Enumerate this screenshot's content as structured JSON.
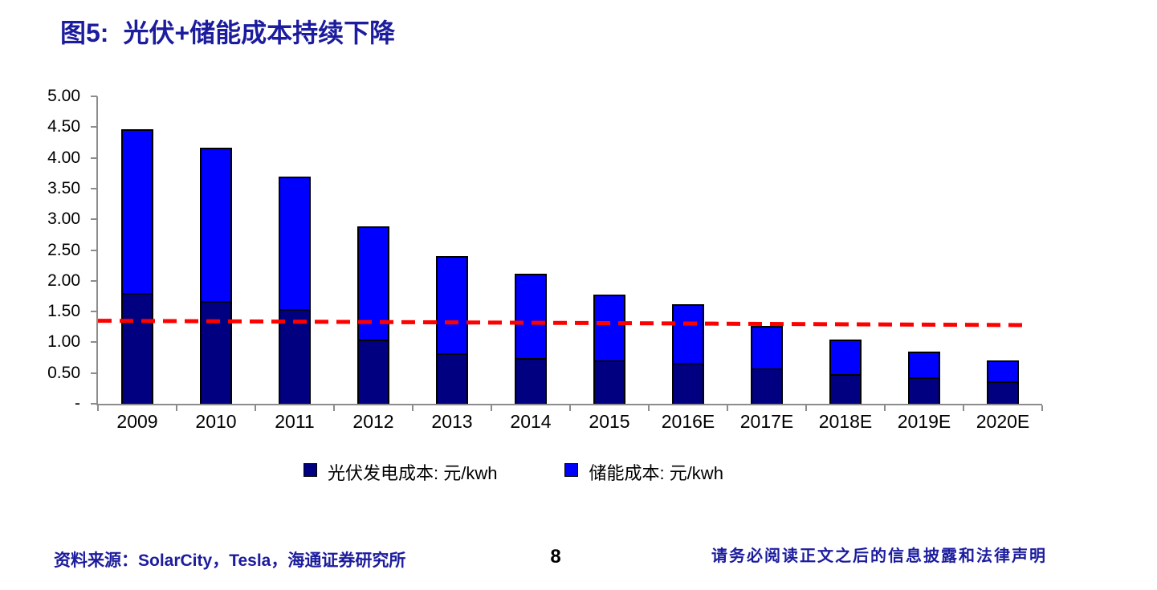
{
  "title": {
    "prefix": "图5:",
    "text": "光伏+储能成本持续下降"
  },
  "chart_data": {
    "type": "bar",
    "stacked": true,
    "title": "光伏+储能成本持续下降",
    "categories": [
      "2009",
      "2010",
      "2011",
      "2012",
      "2013",
      "2014",
      "2015",
      "2016E",
      "2017E",
      "2018E",
      "2019E",
      "2020E"
    ],
    "series": [
      {
        "name": "光伏发电成本: 元/kwh",
        "color": "#000080",
        "values": [
          1.77,
          1.65,
          1.52,
          1.02,
          0.8,
          0.72,
          0.68,
          0.64,
          0.55,
          0.46,
          0.4,
          0.34
        ]
      },
      {
        "name": "储能成本: 元/kwh",
        "color": "#0000FF",
        "values": [
          2.7,
          2.51,
          2.18,
          1.87,
          1.6,
          1.4,
          1.09,
          0.98,
          0.72,
          0.59,
          0.45,
          0.36
        ]
      }
    ],
    "totals": [
      4.47,
      4.16,
      3.7,
      2.89,
      2.4,
      2.12,
      1.77,
      1.62,
      1.27,
      1.05,
      0.85,
      0.7
    ],
    "trend_line": {
      "color": "#FF0000",
      "style": "dashed",
      "start_value": 1.35,
      "end_value": 1.28
    },
    "xlabel": "",
    "ylabel": "",
    "ylim": [
      0,
      5
    ],
    "yticks": [
      {
        "label": "5.00",
        "value": 5.0
      },
      {
        "label": "4.50",
        "value": 4.5
      },
      {
        "label": "4.00",
        "value": 4.0
      },
      {
        "label": "3.50",
        "value": 3.5
      },
      {
        "label": "3.00",
        "value": 3.0
      },
      {
        "label": "2.50",
        "value": 2.5
      },
      {
        "label": "2.00",
        "value": 2.0
      },
      {
        "label": "1.50",
        "value": 1.5
      },
      {
        "label": "1.00",
        "value": 1.0
      },
      {
        "label": "0.50",
        "value": 0.5
      },
      {
        "label": "-",
        "value": 0.0
      }
    ],
    "grid": false,
    "legend_position": "bottom"
  },
  "footer": {
    "source": "资料来源：SolarCity，Tesla，海通证券研究所",
    "page_number": "8",
    "disclaimer": "请务必阅读正文之后的信息披露和法律声明"
  },
  "theme": {
    "title_color": "#1c1c9e",
    "footer_color": "#1c1c9e",
    "axis_color": "#8c8c8c",
    "bar_border_color": "#000000",
    "label_color": "#000000"
  }
}
